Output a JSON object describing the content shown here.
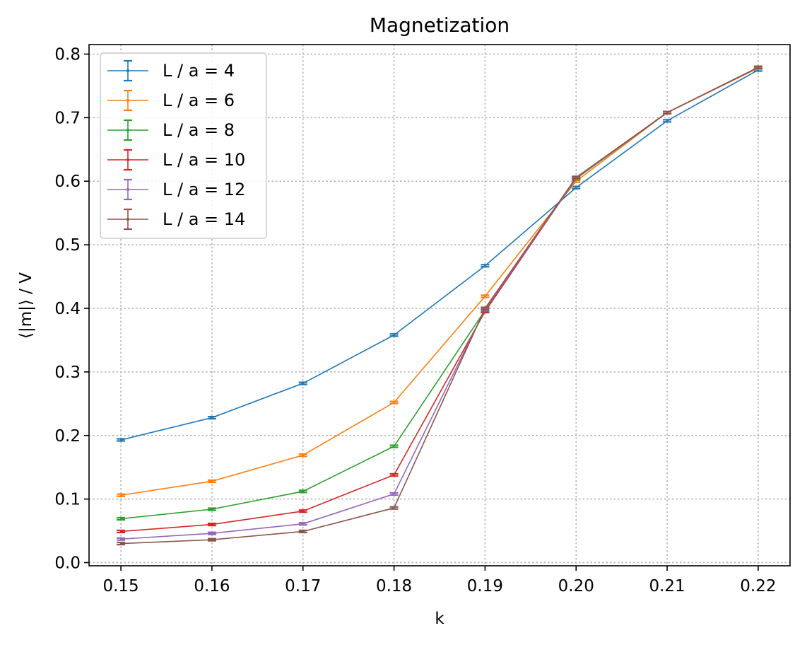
{
  "chart_data": {
    "type": "line",
    "title": "Magnetization",
    "xlabel": "k",
    "ylabel": "⟨|m|⟩ / V",
    "x": [
      0.15,
      0.16,
      0.17,
      0.18,
      0.19,
      0.2,
      0.21,
      0.22
    ],
    "xticks": [
      "0.15",
      "0.16",
      "0.17",
      "0.18",
      "0.19",
      "0.20",
      "0.21",
      "0.22"
    ],
    "yticks": [
      "0.0",
      "0.1",
      "0.2",
      "0.3",
      "0.4",
      "0.5",
      "0.6",
      "0.7",
      "0.8"
    ],
    "xlim": [
      0.1465,
      0.2235
    ],
    "ylim": [
      -0.005,
      0.815
    ],
    "grid": true,
    "error_bars": true,
    "legend_position": "top-left",
    "series": [
      {
        "name": "L / a = 4",
        "color": "#1f77b4",
        "values": [
          0.193,
          0.228,
          0.282,
          0.358,
          0.467,
          0.59,
          0.695,
          0.775
        ]
      },
      {
        "name": "L / a = 6",
        "color": "#ff7f0e",
        "values": [
          0.106,
          0.128,
          0.169,
          0.252,
          0.419,
          0.6,
          0.708,
          0.778
        ]
      },
      {
        "name": "L / a = 8",
        "color": "#2ca02c",
        "values": [
          0.069,
          0.084,
          0.112,
          0.183,
          0.397,
          0.604,
          0.708,
          0.779
        ]
      },
      {
        "name": "L / a = 10",
        "color": "#d62728",
        "values": [
          0.049,
          0.06,
          0.081,
          0.138,
          0.395,
          0.605,
          0.708,
          0.779
        ]
      },
      {
        "name": "L / a = 12",
        "color": "#9467bd",
        "values": [
          0.037,
          0.046,
          0.061,
          0.108,
          0.398,
          0.605,
          0.708,
          0.779
        ]
      },
      {
        "name": "L / a = 14",
        "color": "#8c564b",
        "values": [
          0.03,
          0.036,
          0.049,
          0.086,
          0.4,
          0.606,
          0.708,
          0.779
        ]
      }
    ]
  }
}
